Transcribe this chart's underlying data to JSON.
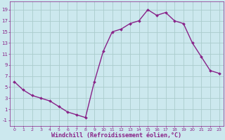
{
  "x": [
    0,
    1,
    2,
    3,
    4,
    5,
    6,
    7,
    8,
    9,
    10,
    11,
    12,
    13,
    14,
    15,
    16,
    17,
    18,
    19,
    20,
    21,
    22,
    23
  ],
  "y": [
    6,
    4.5,
    3.5,
    3.0,
    2.5,
    1.5,
    0.5,
    0.0,
    -0.5,
    6.0,
    11.5,
    15.0,
    15.5,
    16.5,
    17.0,
    19.0,
    18.0,
    18.5,
    17.0,
    16.5,
    13.0,
    10.5,
    8.0,
    7.5
  ],
  "line_color": "#882288",
  "marker": "D",
  "marker_size": 2,
  "line_width": 1.0,
  "bg_color": "#cce8ee",
  "grid_color": "#aacccc",
  "tick_color": "#882288",
  "label_color": "#882288",
  "xlabel": "Windchill (Refroidissement éolien,°C)",
  "xlabel_fontsize": 6.0,
  "ytick_labels": [
    "-1",
    "1",
    "3",
    "5",
    "7",
    "9",
    "11",
    "13",
    "15",
    "17",
    "19"
  ],
  "yticks": [
    -1,
    1,
    3,
    5,
    7,
    9,
    11,
    13,
    15,
    17,
    19
  ],
  "xticks": [
    0,
    1,
    2,
    3,
    4,
    5,
    6,
    7,
    8,
    9,
    10,
    11,
    12,
    13,
    14,
    15,
    16,
    17,
    18,
    19,
    20,
    21,
    22,
    23
  ],
  "ylim": [
    -2.0,
    20.5
  ],
  "xlim": [
    -0.5,
    23.5
  ]
}
